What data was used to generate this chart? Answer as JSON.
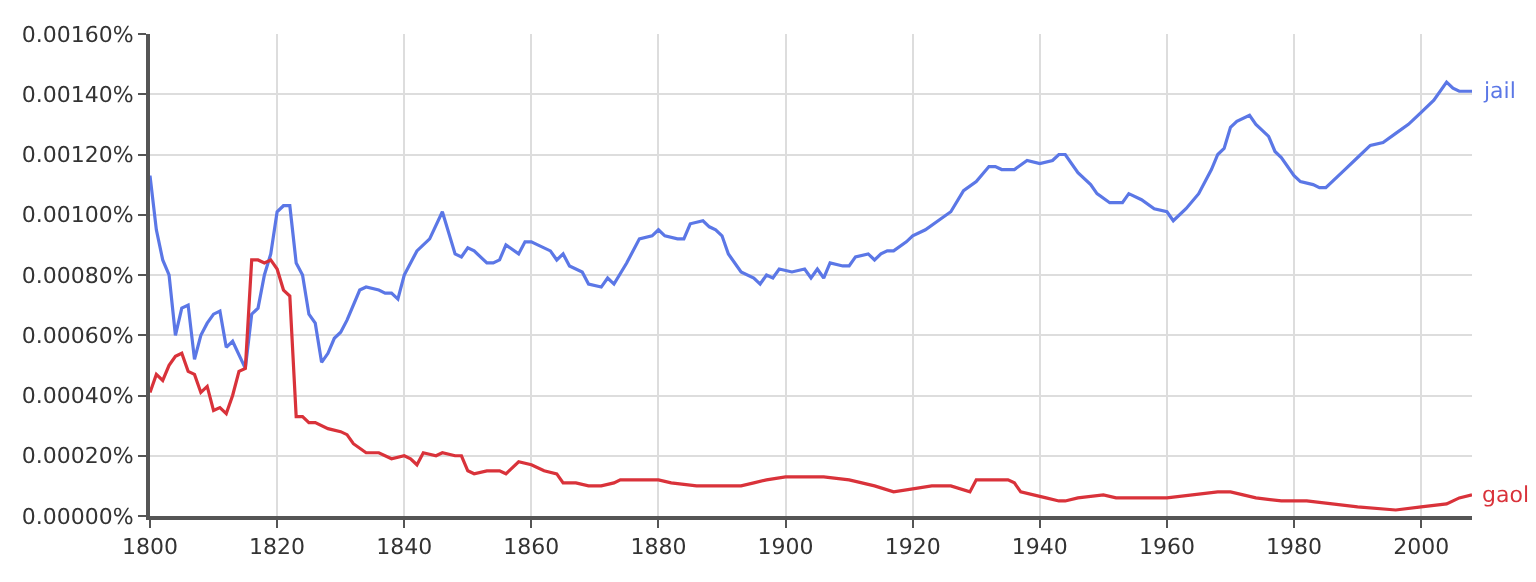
{
  "chart_data": {
    "type": "line",
    "legend": false,
    "grid": true,
    "marker": "none",
    "line_style": "solid",
    "xlim": [
      1800,
      2008
    ],
    "xticks": [
      1800,
      1820,
      1840,
      1860,
      1880,
      1900,
      1920,
      1940,
      1960,
      1980,
      2000
    ],
    "ylim": [
      0,
      0.0016
    ],
    "yticks": [
      {
        "value": 0,
        "label": "0.00000%"
      },
      {
        "value": 0.0002,
        "label": "0.00020%"
      },
      {
        "value": 0.0004,
        "label": "0.00040%"
      },
      {
        "value": 0.0006,
        "label": "0.00060%"
      },
      {
        "value": 0.0008,
        "label": "0.00080%"
      },
      {
        "value": 0.001,
        "label": "0.00100%"
      },
      {
        "value": 0.0012,
        "label": "0.00120%"
      },
      {
        "value": 0.0014,
        "label": "0.00140%"
      },
      {
        "value": 0.0016,
        "label": "0.00160%"
      }
    ],
    "series": [
      {
        "name": "jail",
        "color": "#5b77e6",
        "x": [
          1800,
          1801,
          1802,
          1803,
          1804,
          1805,
          1806,
          1807,
          1808,
          1809,
          1810,
          1811,
          1812,
          1813,
          1815,
          1816,
          1817,
          1818,
          1819,
          1820,
          1821,
          1822,
          1823,
          1824,
          1825,
          1826,
          1827,
          1828,
          1829,
          1830,
          1831,
          1833,
          1834,
          1836,
          1837,
          1838,
          1839,
          1840,
          1842,
          1844,
          1846,
          1848,
          1849,
          1850,
          1851,
          1853,
          1854,
          1855,
          1856,
          1858,
          1859,
          1860,
          1861,
          1863,
          1864,
          1865,
          1866,
          1868,
          1869,
          1871,
          1872,
          1873,
          1875,
          1877,
          1879,
          1880,
          1881,
          1883,
          1884,
          1885,
          1887,
          1888,
          1889,
          1890,
          1891,
          1893,
          1895,
          1896,
          1897,
          1898,
          1899,
          1901,
          1903,
          1904,
          1905,
          1906,
          1907,
          1909,
          1910,
          1911,
          1913,
          1914,
          1915,
          1916,
          1917,
          1919,
          1920,
          1922,
          1924,
          1926,
          1928,
          1930,
          1932,
          1933,
          1934,
          1936,
          1938,
          1940,
          1942,
          1943,
          1944,
          1946,
          1948,
          1949,
          1951,
          1953,
          1954,
          1956,
          1958,
          1960,
          1961,
          1963,
          1965,
          1967,
          1968,
          1969,
          1970,
          1971,
          1973,
          1974,
          1975,
          1976,
          1977,
          1978,
          1980,
          1981,
          1983,
          1984,
          1985,
          1987,
          1988,
          1990,
          1992,
          1994,
          1996,
          1998,
          1999,
          2000,
          2002,
          2004,
          2005,
          2006,
          2008
        ],
        "values": [
          0.00113,
          0.00095,
          0.00085,
          0.0008,
          0.0006,
          0.00069,
          0.0007,
          0.00052,
          0.0006,
          0.00064,
          0.00067,
          0.00068,
          0.00056,
          0.00058,
          0.00049,
          0.00067,
          0.00069,
          0.0008,
          0.00087,
          0.00101,
          0.00103,
          0.00103,
          0.00084,
          0.0008,
          0.00067,
          0.00064,
          0.00051,
          0.00054,
          0.00059,
          0.00061,
          0.00065,
          0.00075,
          0.00076,
          0.00075,
          0.00074,
          0.00074,
          0.00072,
          0.0008,
          0.00088,
          0.00092,
          0.00101,
          0.00087,
          0.00086,
          0.00089,
          0.00088,
          0.00084,
          0.00084,
          0.00085,
          0.0009,
          0.00087,
          0.00091,
          0.00091,
          0.0009,
          0.00088,
          0.00085,
          0.00087,
          0.00083,
          0.00081,
          0.00077,
          0.00076,
          0.00079,
          0.00077,
          0.00084,
          0.00092,
          0.00093,
          0.00095,
          0.00093,
          0.00092,
          0.00092,
          0.00097,
          0.00098,
          0.00096,
          0.00095,
          0.00093,
          0.00087,
          0.00081,
          0.00079,
          0.00077,
          0.0008,
          0.00079,
          0.00082,
          0.00081,
          0.00082,
          0.00079,
          0.00082,
          0.00079,
          0.00084,
          0.00083,
          0.00083,
          0.00086,
          0.00087,
          0.00085,
          0.00087,
          0.00088,
          0.00088,
          0.00091,
          0.00093,
          0.00095,
          0.00098,
          0.00101,
          0.00108,
          0.00111,
          0.00116,
          0.00116,
          0.00115,
          0.00115,
          0.00118,
          0.00117,
          0.00118,
          0.0012,
          0.0012,
          0.00114,
          0.0011,
          0.00107,
          0.00104,
          0.00104,
          0.00107,
          0.00105,
          0.00102,
          0.00101,
          0.00098,
          0.00102,
          0.00107,
          0.00115,
          0.0012,
          0.00122,
          0.00129,
          0.00131,
          0.00133,
          0.0013,
          0.00128,
          0.00126,
          0.00121,
          0.00119,
          0.00113,
          0.00111,
          0.0011,
          0.00109,
          0.00109,
          0.00113,
          0.00115,
          0.00119,
          0.00123,
          0.00124,
          0.00127,
          0.0013,
          0.00132,
          0.00134,
          0.00138,
          0.00144,
          0.00142,
          0.00141,
          0.00141
        ]
      },
      {
        "name": "gaol",
        "color": "#d9323a",
        "x": [
          1800,
          1801,
          1802,
          1803,
          1804,
          1805,
          1806,
          1807,
          1808,
          1809,
          1810,
          1811,
          1812,
          1813,
          1814,
          1815,
          1816,
          1817,
          1818,
          1819,
          1820,
          1821,
          1822,
          1823,
          1824,
          1825,
          1826,
          1828,
          1830,
          1831,
          1832,
          1834,
          1836,
          1838,
          1840,
          1841,
          1842,
          1843,
          1845,
          1846,
          1848,
          1849,
          1850,
          1851,
          1853,
          1855,
          1856,
          1858,
          1860,
          1862,
          1864,
          1865,
          1867,
          1869,
          1871,
          1873,
          1874,
          1876,
          1880,
          1882,
          1886,
          1890,
          1893,
          1895,
          1897,
          1900,
          1902,
          1906,
          1910,
          1914,
          1917,
          1920,
          1923,
          1926,
          1929,
          1930,
          1935,
          1936,
          1937,
          1939,
          1941,
          1943,
          1944,
          1946,
          1950,
          1952,
          1956,
          1960,
          1964,
          1968,
          1970,
          1972,
          1974,
          1978,
          1982,
          1986,
          1990,
          1996,
          2000,
          2004,
          2006,
          2008
        ],
        "values": [
          0.00041,
          0.00047,
          0.00045,
          0.0005,
          0.00053,
          0.00054,
          0.00048,
          0.00047,
          0.00041,
          0.00043,
          0.00035,
          0.00036,
          0.00034,
          0.0004,
          0.00048,
          0.00049,
          0.00085,
          0.00085,
          0.00084,
          0.00085,
          0.00082,
          0.00075,
          0.00073,
          0.00033,
          0.00033,
          0.00031,
          0.00031,
          0.00029,
          0.00028,
          0.00027,
          0.00024,
          0.00021,
          0.00021,
          0.00019,
          0.0002,
          0.00019,
          0.00017,
          0.00021,
          0.0002,
          0.00021,
          0.0002,
          0.0002,
          0.00015,
          0.00014,
          0.00015,
          0.00015,
          0.00014,
          0.00018,
          0.00017,
          0.00015,
          0.00014,
          0.00011,
          0.00011,
          0.0001,
          0.0001,
          0.00011,
          0.00012,
          0.00012,
          0.00012,
          0.00011,
          0.0001,
          0.0001,
          0.0001,
          0.00011,
          0.00012,
          0.00013,
          0.00013,
          0.00013,
          0.00012,
          0.0001,
          8e-05,
          9e-05,
          0.0001,
          0.0001,
          8e-05,
          0.00012,
          0.00012,
          0.00011,
          8e-05,
          7e-05,
          6e-05,
          5e-05,
          5e-05,
          6e-05,
          7e-05,
          6e-05,
          6e-05,
          6e-05,
          7e-05,
          8e-05,
          8e-05,
          7e-05,
          6e-05,
          5e-05,
          5e-05,
          4e-05,
          3e-05,
          2e-05,
          3e-05,
          4e-05,
          6e-05,
          7e-05
        ]
      }
    ]
  }
}
